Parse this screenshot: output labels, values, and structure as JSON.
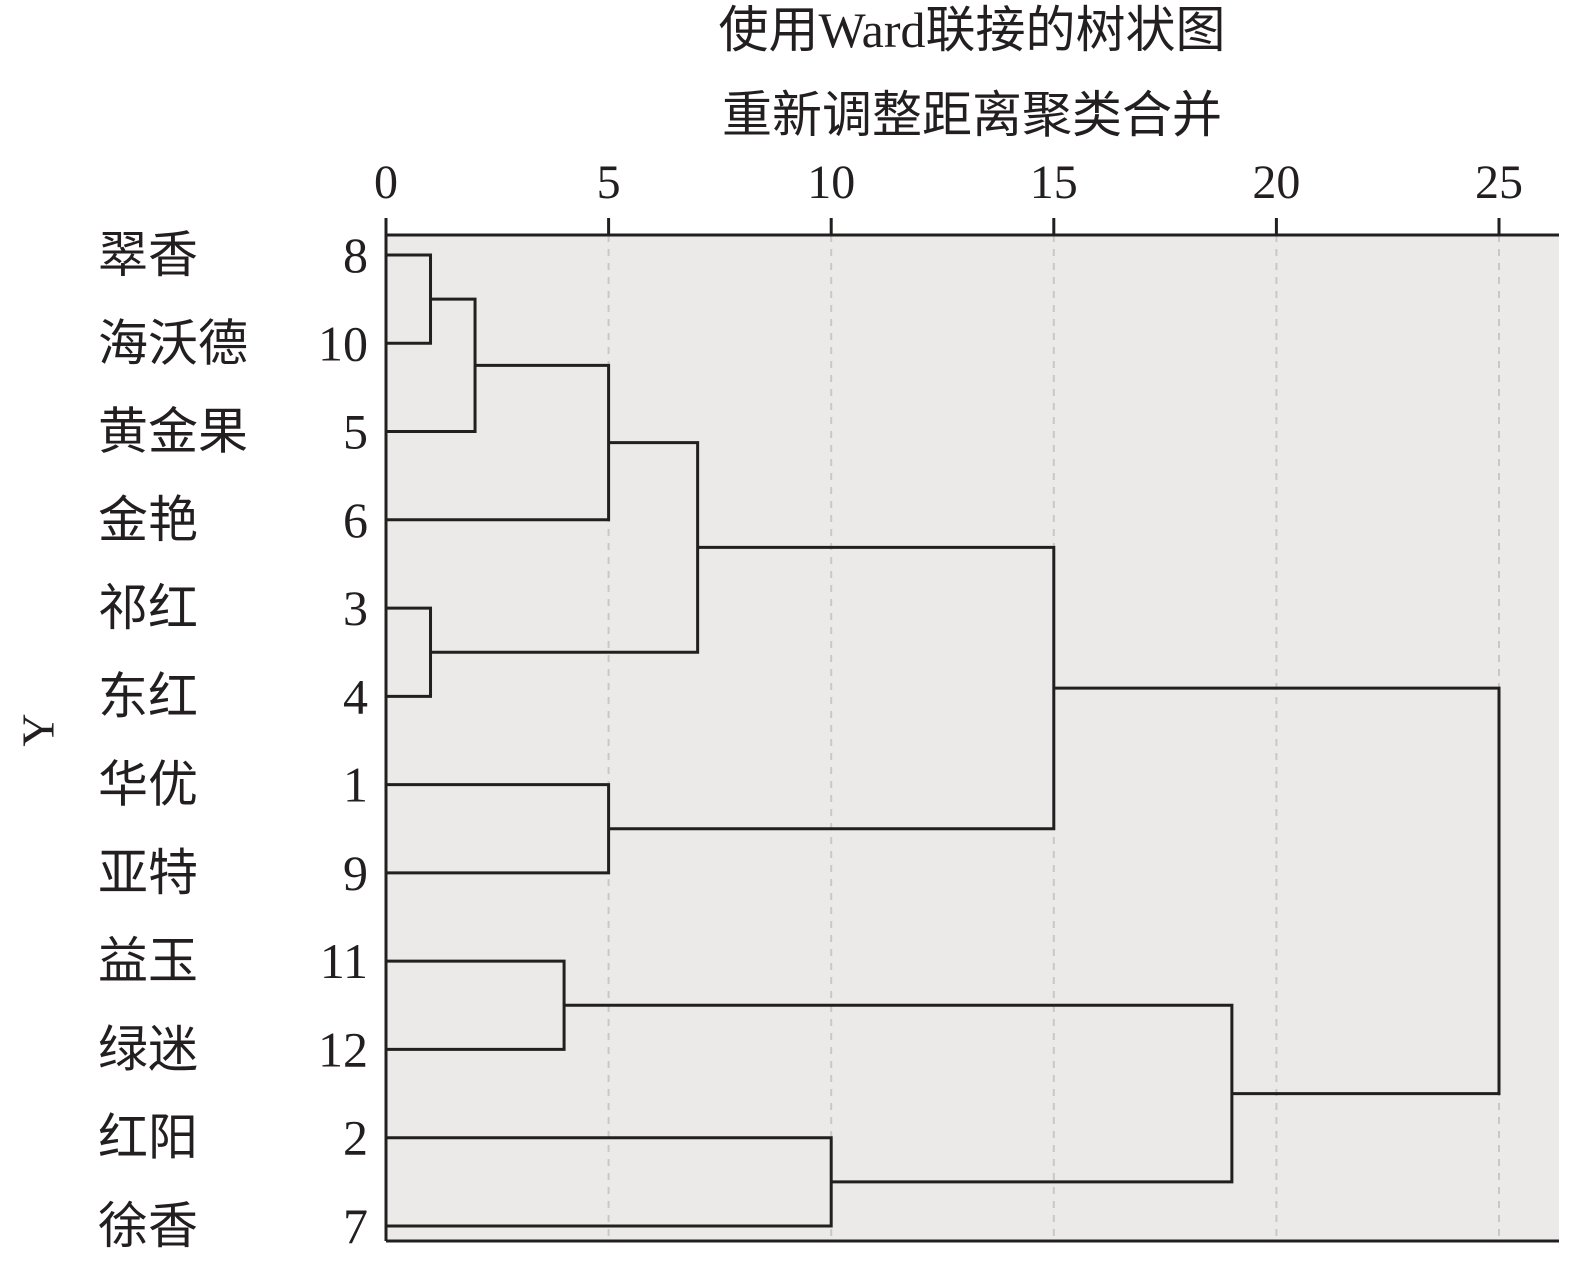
{
  "chart_data": {
    "type": "dendrogram",
    "title": "使用Ward联接的树状图",
    "subtitle": "重新调整距离聚类合并",
    "ylabel": "Y",
    "xlim": [
      0,
      25
    ],
    "xticks": [
      0,
      5,
      10,
      15,
      20,
      25
    ],
    "grid": true,
    "leaves": [
      {
        "name": "翠香",
        "id": "8"
      },
      {
        "name": "海沃德",
        "id": "10"
      },
      {
        "name": "黄金果",
        "id": "5"
      },
      {
        "name": "金艳",
        "id": "6"
      },
      {
        "name": "祁红",
        "id": "3"
      },
      {
        "name": "东红",
        "id": "4"
      },
      {
        "name": "华优",
        "id": "1"
      },
      {
        "name": "亚特",
        "id": "9"
      },
      {
        "name": "益玉",
        "id": "11"
      },
      {
        "name": "绿迷",
        "id": "12"
      },
      {
        "name": "红阳",
        "id": "2"
      },
      {
        "name": "徐香",
        "id": "7"
      }
    ],
    "merges": [
      {
        "a": "8",
        "b": "10",
        "distance": 1
      },
      {
        "a": "3",
        "b": "4",
        "distance": 1
      },
      {
        "a": "8-10",
        "b": "5",
        "distance": 2
      },
      {
        "a": "11",
        "b": "12",
        "distance": 4
      },
      {
        "a": "8-10-5",
        "b": "6",
        "distance": 5
      },
      {
        "a": "1",
        "b": "9",
        "distance": 5
      },
      {
        "a": "8-10-5-6",
        "b": "3-4",
        "distance": 7
      },
      {
        "a": "2",
        "b": "7",
        "distance": 10
      },
      {
        "a": "8-10-5-6-3-4",
        "b": "1-9",
        "distance": 15
      },
      {
        "a": "11-12",
        "b": "2-7",
        "distance": 19
      },
      {
        "a": "8-10-5-6-3-4-1-9",
        "b": "11-12-2-7",
        "distance": 25
      }
    ]
  },
  "colors": {
    "plot_bg": "#ebeae8",
    "line": "#231f20",
    "grid": "#c8c8c8"
  }
}
